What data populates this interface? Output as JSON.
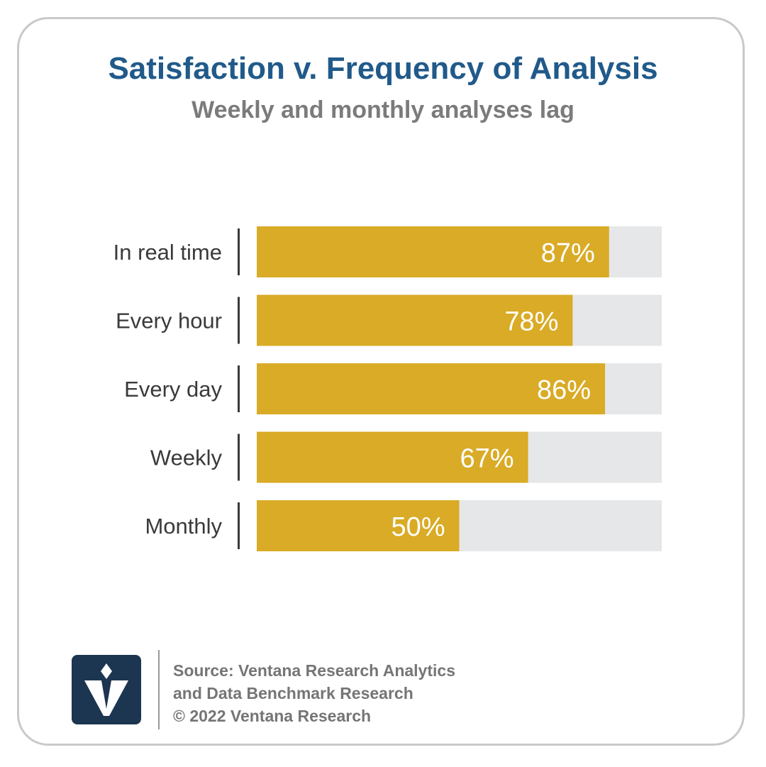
{
  "header": {
    "title": "Satisfaction v. Frequency of Analysis",
    "subtitle": "Weekly and monthly analyses lag"
  },
  "chart_data": {
    "type": "bar",
    "orientation": "horizontal",
    "title": "Satisfaction v. Frequency of Analysis",
    "subtitle": "Weekly and monthly analyses lag",
    "categories": [
      "In real time",
      "Every hour",
      "Every day",
      "Weekly",
      "Monthly"
    ],
    "values": [
      87,
      78,
      86,
      67,
      50
    ],
    "value_labels": [
      "87%",
      "78%",
      "86%",
      "67%",
      "50%"
    ],
    "xlim": [
      0,
      100
    ],
    "unit": "%",
    "grid": false,
    "legend": "none",
    "colors": {
      "bar": "#d9ab26",
      "track": "#e6e7e9"
    }
  },
  "footer": {
    "source_line1": "Source: Ventana Research Analytics",
    "source_line2": "and Data Benchmark Research",
    "source_line3": "© 2022 Ventana Research",
    "logo_icon": "ventana-v-logo-icon"
  },
  "colors": {
    "title": "#215a8a",
    "subtitle": "#7b7b7b",
    "border": "#c9c9c9",
    "logo_bg": "#1c3550"
  }
}
